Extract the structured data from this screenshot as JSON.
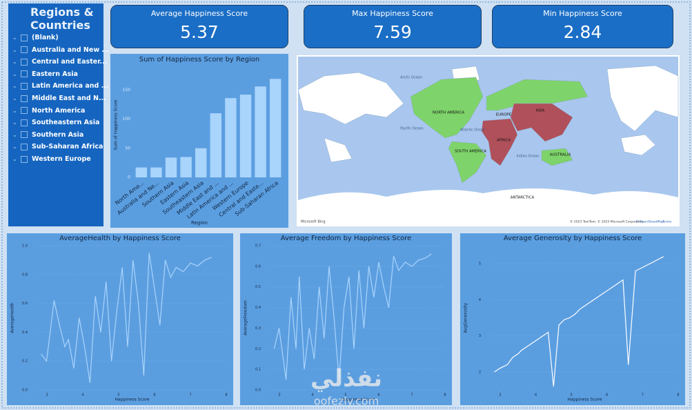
{
  "slicer": {
    "title": "Regions & Countries",
    "items": [
      "(Blank)",
      "Australia and New ...",
      "Central and Easter...",
      "Eastern Asia",
      "Latin America and ...",
      "Middle East and N...",
      "North America",
      "Southeastern Asia",
      "Southern Asia",
      "Sub-Saharan Africa",
      "Western Europe"
    ]
  },
  "cards": [
    {
      "label": "Average Happiness Score",
      "value": 5.37
    },
    {
      "label": "Max Happiness Score",
      "value": 7.59
    },
    {
      "label": "Min Happiness Score",
      "value": 2.84
    }
  ],
  "chart_data": [
    {
      "type": "bar",
      "title": "Sum of Happiness Score by Region",
      "x_label": "Region",
      "y_label": "Sum of Happiness Score",
      "categories": [
        "North Ame...",
        "Australia and Ne...",
        "Southern Asia",
        "Eastern Asia",
        "Southeastern Asia",
        "Middle East and ...",
        "Latin America and ...",
        "Western Europe",
        "Central and Easte...",
        "Sub-Saharan Africa"
      ],
      "values": [
        17,
        17,
        34,
        35,
        50,
        110,
        136,
        142,
        156,
        169
      ],
      "color": "#a9d4fb",
      "ylim": [
        0,
        180
      ],
      "yticks": [
        0,
        50,
        100,
        150
      ]
    },
    {
      "type": "line",
      "title": "AverageHealth by Happiness Score",
      "x_label": "Happiness Score",
      "y_label": "AverageHealth",
      "x": [
        2.84,
        2.99,
        3.2,
        3.35,
        3.5,
        3.6,
        3.75,
        3.9,
        4.05,
        4.2,
        4.35,
        4.5,
        4.65,
        4.8,
        4.95,
        5.1,
        5.25,
        5.4,
        5.55,
        5.7,
        5.85,
        6.0,
        6.15,
        6.3,
        6.45,
        6.6,
        6.8,
        7.0,
        7.2,
        7.4,
        7.59
      ],
      "values": [
        0.25,
        0.2,
        0.62,
        0.45,
        0.3,
        0.35,
        0.15,
        0.5,
        0.3,
        0.05,
        0.65,
        0.4,
        0.75,
        0.2,
        0.55,
        0.85,
        0.3,
        0.9,
        0.6,
        0.1,
        0.95,
        0.7,
        0.45,
        0.9,
        0.78,
        0.85,
        0.82,
        0.88,
        0.86,
        0.9,
        0.92
      ],
      "color": "#a9d4fb",
      "xlim": [
        2.75,
        8
      ],
      "xticks": [
        3,
        4,
        5,
        6,
        7,
        8
      ],
      "ylim": [
        0,
        1
      ],
      "yticks": [
        {
          "value": 0,
          "label": "0.0"
        },
        0.2,
        0.4,
        0.6,
        0.8,
        {
          "value": 1,
          "label": "1.0"
        }
      ]
    },
    {
      "type": "line",
      "title": "Average Freedom by Happiness Score",
      "x_label": "Happiness Score",
      "y_label": "AverageFreedom",
      "x": [
        2.84,
        2.99,
        3.2,
        3.35,
        3.5,
        3.6,
        3.75,
        3.9,
        4.05,
        4.2,
        4.35,
        4.5,
        4.65,
        4.8,
        4.95,
        5.1,
        5.25,
        5.4,
        5.55,
        5.7,
        5.85,
        6.0,
        6.15,
        6.3,
        6.45,
        6.6,
        6.8,
        7.0,
        7.2,
        7.4,
        7.59
      ],
      "values": [
        0.2,
        0.3,
        0.05,
        0.45,
        0.2,
        0.55,
        0.1,
        0.3,
        0.15,
        0.5,
        0.25,
        0.6,
        0.35,
        0.05,
        0.4,
        0.55,
        0.2,
        0.58,
        0.3,
        0.6,
        0.45,
        0.62,
        0.5,
        0.4,
        0.65,
        0.58,
        0.62,
        0.6,
        0.63,
        0.64,
        0.66
      ],
      "color": "#a9d4fb",
      "xlim": [
        2.75,
        8
      ],
      "xticks": [
        3,
        4,
        5,
        6,
        7,
        8
      ],
      "ylim": [
        0,
        0.7
      ],
      "yticks": [
        {
          "value": 0,
          "label": "0.0"
        },
        0.1,
        0.2,
        0.3,
        0.4,
        0.5,
        0.6,
        0.7
      ]
    },
    {
      "type": "line",
      "title": "Average Generosity by Happiness Score",
      "x_label": "Happiness Score",
      "y_label": "AvgGenerosity",
      "x": [
        2.84,
        2.99,
        3.2,
        3.35,
        3.5,
        3.6,
        3.75,
        3.9,
        4.05,
        4.2,
        4.35,
        4.5,
        4.65,
        4.8,
        4.95,
        5.1,
        5.25,
        5.4,
        5.55,
        5.7,
        5.85,
        6.0,
        6.15,
        6.3,
        6.45,
        6.6,
        6.8,
        7.0,
        7.2,
        7.4,
        7.59
      ],
      "values": [
        2.0,
        2.1,
        2.2,
        2.4,
        2.5,
        2.6,
        2.7,
        2.8,
        2.9,
        3.0,
        3.1,
        1.6,
        3.3,
        3.45,
        3.5,
        3.6,
        3.75,
        3.85,
        3.95,
        4.05,
        4.15,
        4.25,
        4.35,
        4.45,
        4.55,
        2.2,
        4.8,
        4.9,
        5.0,
        5.1,
        5.2
      ],
      "color": "#ffffff",
      "xlim": [
        2.75,
        8
      ],
      "xticks": [
        3,
        4,
        5,
        6,
        7,
        8
      ],
      "ylim": [
        1.5,
        5.5
      ],
      "yticks": [
        2,
        3,
        4,
        5
      ]
    }
  ],
  "map": {
    "labels": [
      "Arctic Ocean",
      "NORTH AMERICA",
      "EUROPE",
      "ASIA",
      "Pacific Ocean",
      "Atlantic Ocean",
      "AFRICA",
      "SOUTH AMERICA",
      "Indian Ocean",
      "AUSTRALIA",
      "ANTARCTICA"
    ],
    "logo": "Microsoft Bing",
    "attribution": "© 2023 TomTom, © 2023 Microsoft Corporation",
    "osm": "© OpenStreetMap",
    "terms": "Terms"
  },
  "watermark": {
    "arabic": "نفذلي",
    "site": "oofezly.com"
  }
}
